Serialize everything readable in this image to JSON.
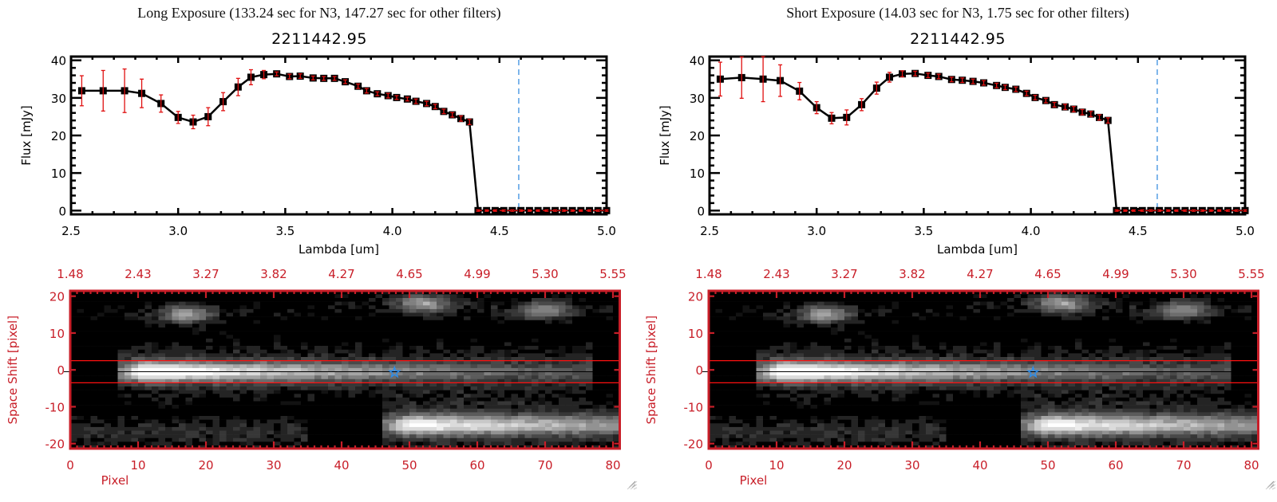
{
  "panels": [
    {
      "title": "Long Exposure (133.24 sec for N3, 147.27 sec for other filters)",
      "object": "2211442.95"
    },
    {
      "title": "Short Exposure (14.03 sec for N3, 1.75 sec for other filters)",
      "object": "2211442.95"
    }
  ],
  "colors": {
    "axis_red": "#c81e28",
    "errorbar": "#e01010",
    "marker_line": "#000000",
    "cut_line": "#3a8fe0",
    "aperture_lines": "#ff1010",
    "star": "#2e8de8"
  },
  "chart_data": [
    {
      "type": "line",
      "panel": "long-exposure-spectrum",
      "xlabel": "Lambda [um]",
      "ylabel": "Flux [mJy]",
      "xlim": [
        2.5,
        5.0
      ],
      "ylim": [
        -1,
        41
      ],
      "x_ticks": [
        "2.5",
        "3.0",
        "3.5",
        "4.0",
        "4.5",
        "5.0"
      ],
      "y_ticks": [
        "0",
        "10",
        "20",
        "30",
        "40"
      ],
      "grid": false,
      "cutoff_wavelength": 4.59,
      "x": [
        2.55,
        2.65,
        2.75,
        2.83,
        2.92,
        3.0,
        3.07,
        3.14,
        3.21,
        3.28,
        3.34,
        3.4,
        3.46,
        3.52,
        3.57,
        3.63,
        3.68,
        3.73,
        3.78,
        3.84,
        3.88,
        3.93,
        3.98,
        4.02,
        4.07,
        4.11,
        4.16,
        4.2,
        4.24,
        4.28,
        4.32,
        4.36,
        4.4,
        4.44,
        4.48,
        4.52,
        4.56,
        4.6,
        4.64,
        4.68,
        4.72,
        4.76,
        4.8,
        4.84,
        4.88,
        4.92,
        4.96,
        5.0
      ],
      "y": [
        31.9,
        31.9,
        31.9,
        31.2,
        28.5,
        24.8,
        23.6,
        25.0,
        29.0,
        32.9,
        35.5,
        36.2,
        36.4,
        35.7,
        35.8,
        35.3,
        35.2,
        35.2,
        34.3,
        33.1,
        31.9,
        31.1,
        30.6,
        30.1,
        29.7,
        29.1,
        28.5,
        27.7,
        26.4,
        25.5,
        24.5,
        23.6,
        0,
        0,
        0,
        0,
        0,
        0,
        0,
        0,
        0,
        0,
        0,
        0,
        0,
        0,
        0,
        0
      ],
      "yerr": [
        4.0,
        5.4,
        5.8,
        3.8,
        2.3,
        1.6,
        1.8,
        2.4,
        2.4,
        2.3,
        2.0,
        1.1,
        0.5,
        0.6,
        0.6,
        0.5,
        0.5,
        0.5,
        0.5,
        0.6,
        0.6,
        0.5,
        0.6,
        0.5,
        0.5,
        0.6,
        0.6,
        0.6,
        0.6,
        0.6,
        0.7,
        0.7,
        0.2,
        0.2,
        0.2,
        0.2,
        0.2,
        0.2,
        0.2,
        0.2,
        0.2,
        0.2,
        0.2,
        0.2,
        0.2,
        0.2,
        0.2,
        0.2
      ]
    },
    {
      "type": "line",
      "panel": "short-exposure-spectrum",
      "xlabel": "Lambda [um]",
      "ylabel": "Flux [mJy]",
      "xlim": [
        2.5,
        5.0
      ],
      "ylim": [
        -1,
        41
      ],
      "x_ticks": [
        "2.5",
        "3.0",
        "3.5",
        "4.0",
        "4.5",
        "5.0"
      ],
      "y_ticks": [
        "0",
        "10",
        "20",
        "30",
        "40"
      ],
      "grid": false,
      "cutoff_wavelength": 4.59,
      "x": [
        2.55,
        2.65,
        2.75,
        2.83,
        2.92,
        3.0,
        3.07,
        3.14,
        3.21,
        3.28,
        3.34,
        3.4,
        3.46,
        3.52,
        3.57,
        3.63,
        3.68,
        3.73,
        3.78,
        3.84,
        3.88,
        3.93,
        3.98,
        4.02,
        4.07,
        4.11,
        4.16,
        4.2,
        4.24,
        4.28,
        4.32,
        4.36,
        4.4,
        4.44,
        4.48,
        4.52,
        4.56,
        4.6,
        4.64,
        4.68,
        4.72,
        4.76,
        4.8,
        4.84,
        4.88,
        4.92,
        4.96,
        5.0
      ],
      "y": [
        35.0,
        35.4,
        35.0,
        34.6,
        31.8,
        27.4,
        24.6,
        24.8,
        28.2,
        32.6,
        35.5,
        36.4,
        36.5,
        36.0,
        35.7,
        34.9,
        34.7,
        34.4,
        34.0,
        33.3,
        32.8,
        32.3,
        31.2,
        30.1,
        29.3,
        28.2,
        27.6,
        27.0,
        26.2,
        25.7,
        24.8,
        24.0,
        0,
        0,
        0,
        0,
        0,
        0,
        0,
        0,
        0,
        0,
        0,
        0,
        0,
        0,
        0,
        0
      ],
      "yerr": [
        4.5,
        5.5,
        6.0,
        4.2,
        2.3,
        1.6,
        1.5,
        2.0,
        1.6,
        1.6,
        1.3,
        0.8,
        0.6,
        0.6,
        0.6,
        0.6,
        0.6,
        0.6,
        0.6,
        0.6,
        0.6,
        0.6,
        0.6,
        0.6,
        0.6,
        0.6,
        0.7,
        0.7,
        0.7,
        0.7,
        0.7,
        0.7,
        0.2,
        0.2,
        0.2,
        0.2,
        0.2,
        0.2,
        0.2,
        0.2,
        0.2,
        0.2,
        0.2,
        0.2,
        0.2,
        0.2,
        0.2,
        0.2
      ]
    },
    {
      "type": "heatmap",
      "panel": "long-exposure-2d-spectrum",
      "xlabel": "Pixel",
      "ylabel": "Space Shift [pixel]",
      "xlim": [
        0,
        81
      ],
      "ylim": [
        -21,
        21
      ],
      "x_ticks": [
        "0",
        "10",
        "20",
        "30",
        "40",
        "50",
        "60",
        "70",
        "80"
      ],
      "y_ticks": [
        "20",
        "10",
        "0",
        "-10",
        "-20"
      ],
      "top_ticks": [
        "1.48",
        "2.43",
        "3.27",
        "3.82",
        "4.27",
        "4.65",
        "4.99",
        "5.30",
        "5.55"
      ],
      "aperture": [
        -3.5,
        2.5
      ],
      "center_row": -0.5,
      "star_marker": {
        "pixel": 47.8,
        "shift": -0.7
      },
      "features": [
        {
          "kind": "trace",
          "shift": -0.5,
          "start": 7,
          "peak_pixel": 11,
          "end": 77,
          "peak": 1.0,
          "width": 1.8
        },
        {
          "kind": "trace",
          "shift": -15,
          "start": 46,
          "peak_pixel": 50,
          "end": 81,
          "peak": 0.85,
          "width": 1.8
        },
        {
          "kind": "blob",
          "pixel": 17,
          "shift": 15,
          "peak": 0.5
        },
        {
          "kind": "blob",
          "pixel": 52,
          "shift": 18,
          "peak": 0.5
        },
        {
          "kind": "blob",
          "pixel": 70,
          "shift": 16,
          "peak": 0.4
        }
      ]
    },
    {
      "type": "heatmap",
      "panel": "short-exposure-2d-spectrum",
      "xlabel": "Pixel",
      "ylabel": "Space Shift [pixel]",
      "xlim": [
        0,
        81
      ],
      "ylim": [
        -21,
        21
      ],
      "x_ticks": [
        "0",
        "10",
        "20",
        "30",
        "40",
        "50",
        "60",
        "70",
        "80"
      ],
      "y_ticks": [
        "20",
        "10",
        "0",
        "-10",
        "-20"
      ],
      "top_ticks": [
        "1.48",
        "2.43",
        "3.27",
        "3.82",
        "4.27",
        "4.65",
        "4.99",
        "5.30",
        "5.55"
      ],
      "aperture": [
        -3.5,
        2.5
      ],
      "center_row": -0.5,
      "star_marker": {
        "pixel": 47.8,
        "shift": -0.7
      },
      "features": [
        {
          "kind": "trace",
          "shift": -0.5,
          "start": 7,
          "peak_pixel": 11,
          "end": 77,
          "peak": 1.0,
          "width": 1.8
        },
        {
          "kind": "trace",
          "shift": -15,
          "start": 46,
          "peak_pixel": 50,
          "end": 81,
          "peak": 0.85,
          "width": 1.8
        },
        {
          "kind": "blob",
          "pixel": 17,
          "shift": 15,
          "peak": 0.5
        },
        {
          "kind": "blob",
          "pixel": 52,
          "shift": 18,
          "peak": 0.5
        },
        {
          "kind": "blob",
          "pixel": 70,
          "shift": 16,
          "peak": 0.4
        }
      ]
    }
  ]
}
